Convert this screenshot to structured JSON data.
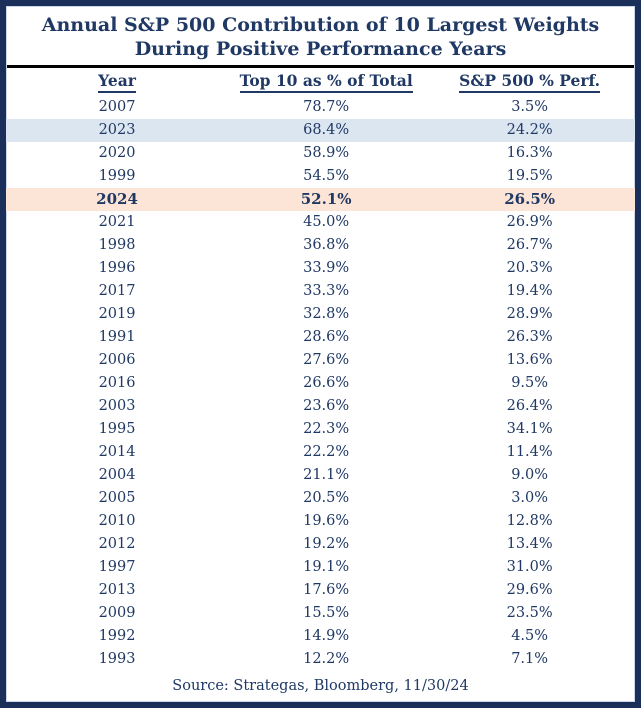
{
  "header": {
    "title_line1": "Annual S&P 500 Contribution of 10 Largest Weights",
    "title_line2": "During Positive Performance Years"
  },
  "colors": {
    "text_navy": "#1f3864",
    "frame_border_navy": "#1b2f5b",
    "title_divider_black": "#000000",
    "row_highlight_blue": "#dce6f1",
    "row_highlight_peach": "#fce4d6"
  },
  "chart_data": {
    "type": "table",
    "title": "Annual S&P 500 Contribution of 10 Largest Weights During Positive Performance Years",
    "columns": [
      "Year",
      "Top 10 as % of Total",
      "S&P 500 % Perf."
    ],
    "rows": [
      {
        "year": "2007",
        "top10_pct": "78.7%",
        "sp500_perf": "3.5%",
        "highlight": null,
        "bold": false
      },
      {
        "year": "2023",
        "top10_pct": "68.4%",
        "sp500_perf": "24.2%",
        "highlight": "blue",
        "bold": false
      },
      {
        "year": "2020",
        "top10_pct": "58.9%",
        "sp500_perf": "16.3%",
        "highlight": null,
        "bold": false
      },
      {
        "year": "1999",
        "top10_pct": "54.5%",
        "sp500_perf": "19.5%",
        "highlight": null,
        "bold": false
      },
      {
        "year": "2024",
        "top10_pct": "52.1%",
        "sp500_perf": "26.5%",
        "highlight": "peach",
        "bold": true
      },
      {
        "year": "2021",
        "top10_pct": "45.0%",
        "sp500_perf": "26.9%",
        "highlight": null,
        "bold": false
      },
      {
        "year": "1998",
        "top10_pct": "36.8%",
        "sp500_perf": "26.7%",
        "highlight": null,
        "bold": false
      },
      {
        "year": "1996",
        "top10_pct": "33.9%",
        "sp500_perf": "20.3%",
        "highlight": null,
        "bold": false
      },
      {
        "year": "2017",
        "top10_pct": "33.3%",
        "sp500_perf": "19.4%",
        "highlight": null,
        "bold": false
      },
      {
        "year": "2019",
        "top10_pct": "32.8%",
        "sp500_perf": "28.9%",
        "highlight": null,
        "bold": false
      },
      {
        "year": "1991",
        "top10_pct": "28.6%",
        "sp500_perf": "26.3%",
        "highlight": null,
        "bold": false
      },
      {
        "year": "2006",
        "top10_pct": "27.6%",
        "sp500_perf": "13.6%",
        "highlight": null,
        "bold": false
      },
      {
        "year": "2016",
        "top10_pct": "26.6%",
        "sp500_perf": "9.5%",
        "highlight": null,
        "bold": false
      },
      {
        "year": "2003",
        "top10_pct": "23.6%",
        "sp500_perf": "26.4%",
        "highlight": null,
        "bold": false
      },
      {
        "year": "1995",
        "top10_pct": "22.3%",
        "sp500_perf": "34.1%",
        "highlight": null,
        "bold": false
      },
      {
        "year": "2014",
        "top10_pct": "22.2%",
        "sp500_perf": "11.4%",
        "highlight": null,
        "bold": false
      },
      {
        "year": "2004",
        "top10_pct": "21.1%",
        "sp500_perf": "9.0%",
        "highlight": null,
        "bold": false
      },
      {
        "year": "2005",
        "top10_pct": "20.5%",
        "sp500_perf": "3.0%",
        "highlight": null,
        "bold": false
      },
      {
        "year": "2010",
        "top10_pct": "19.6%",
        "sp500_perf": "12.8%",
        "highlight": null,
        "bold": false
      },
      {
        "year": "2012",
        "top10_pct": "19.2%",
        "sp500_perf": "13.4%",
        "highlight": null,
        "bold": false
      },
      {
        "year": "1997",
        "top10_pct": "19.1%",
        "sp500_perf": "31.0%",
        "highlight": null,
        "bold": false
      },
      {
        "year": "2013",
        "top10_pct": "17.6%",
        "sp500_perf": "29.6%",
        "highlight": null,
        "bold": false
      },
      {
        "year": "2009",
        "top10_pct": "15.5%",
        "sp500_perf": "23.5%",
        "highlight": null,
        "bold": false
      },
      {
        "year": "1992",
        "top10_pct": "14.9%",
        "sp500_perf": "4.5%",
        "highlight": null,
        "bold": false
      },
      {
        "year": "1993",
        "top10_pct": "12.2%",
        "sp500_perf": "7.1%",
        "highlight": null,
        "bold": false
      }
    ],
    "legend_position": "none",
    "grid": false,
    "source": "Source: Strategas, Bloomberg, 11/30/24"
  }
}
